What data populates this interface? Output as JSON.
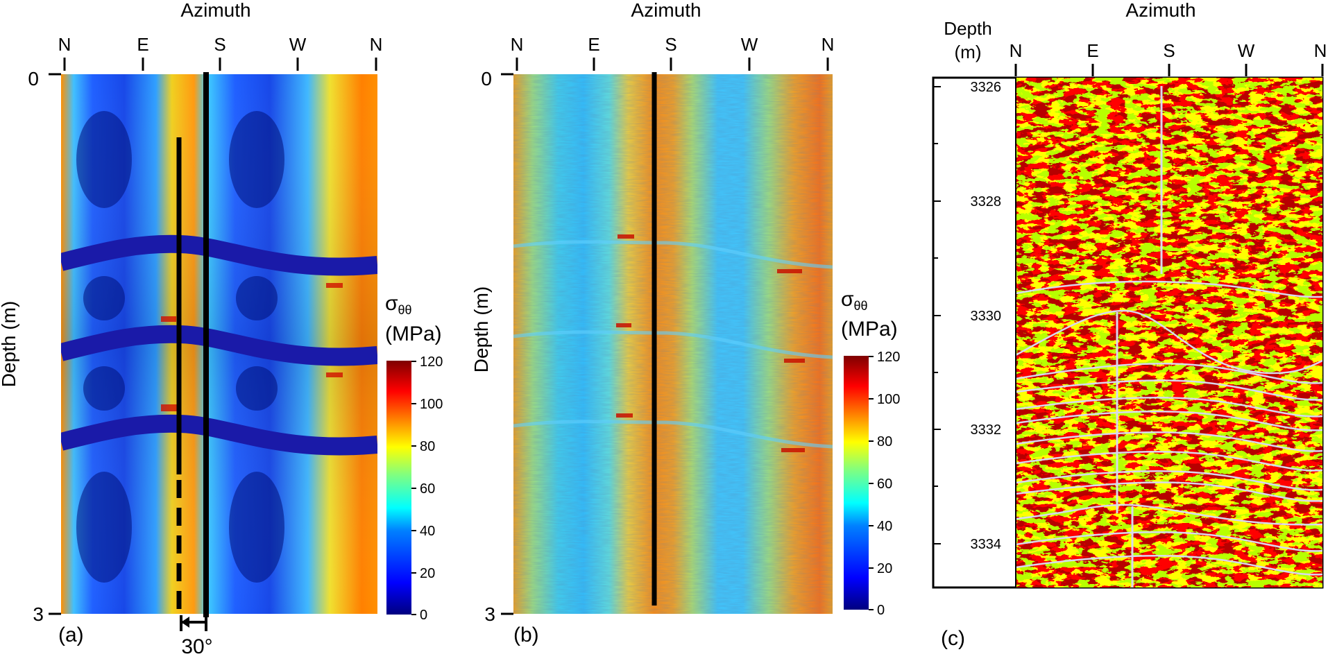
{
  "chart_data": [
    {
      "type": "heatmap",
      "panel_label": "(a)",
      "title": "Azimuth",
      "ylabel": "Depth (m)",
      "x_ticks": [
        "N",
        "E",
        "S",
        "W",
        "N"
      ],
      "y_ticks": [
        "0",
        "3"
      ],
      "ylim": [
        0,
        3
      ],
      "colorbar": {
        "label_symbol": "σ",
        "label_sub": "θθ",
        "unit": "(MPa)",
        "ticks": [
          "120",
          "100",
          "80",
          "60",
          "40",
          "20",
          "0"
        ],
        "range": [
          0,
          120
        ]
      },
      "annotation": "30°",
      "low_stress_bands_depth_m": [
        0.98,
        1.5,
        2.0
      ]
    },
    {
      "type": "heatmap",
      "panel_label": "(b)",
      "title": "Azimuth",
      "ylabel": "Depth (m)",
      "x_ticks": [
        "N",
        "E",
        "S",
        "W",
        "N"
      ],
      "y_ticks": [
        "0",
        "3"
      ],
      "ylim": [
        0,
        3
      ],
      "colorbar": {
        "label_symbol": "σ",
        "label_sub": "θθ",
        "unit": "(MPa)",
        "ticks": [
          "120",
          "100",
          "80",
          "60",
          "40",
          "20",
          "0"
        ],
        "range": [
          0,
          120
        ]
      }
    },
    {
      "type": "heatmap",
      "panel_label": "(c)",
      "title": "Azimuth",
      "ylabel_line1": "Depth",
      "ylabel_line2": "(m)",
      "x_ticks": [
        "N",
        "E",
        "S",
        "W",
        "N"
      ],
      "y_ticks": [
        "3326",
        "3328",
        "3330",
        "3332",
        "3334"
      ],
      "ylim": [
        3325.8,
        3335.6
      ]
    }
  ],
  "colors": {
    "stress_scale": [
      "#00007f",
      "#0000ff",
      "#0080ff",
      "#00ffff",
      "#80ff80",
      "#ffff00",
      "#ff8000",
      "#ff0000",
      "#7f0000"
    ],
    "image_dark": "#7a0000",
    "image_light": "#ffff00",
    "trace_line": "#d8d8ee"
  }
}
